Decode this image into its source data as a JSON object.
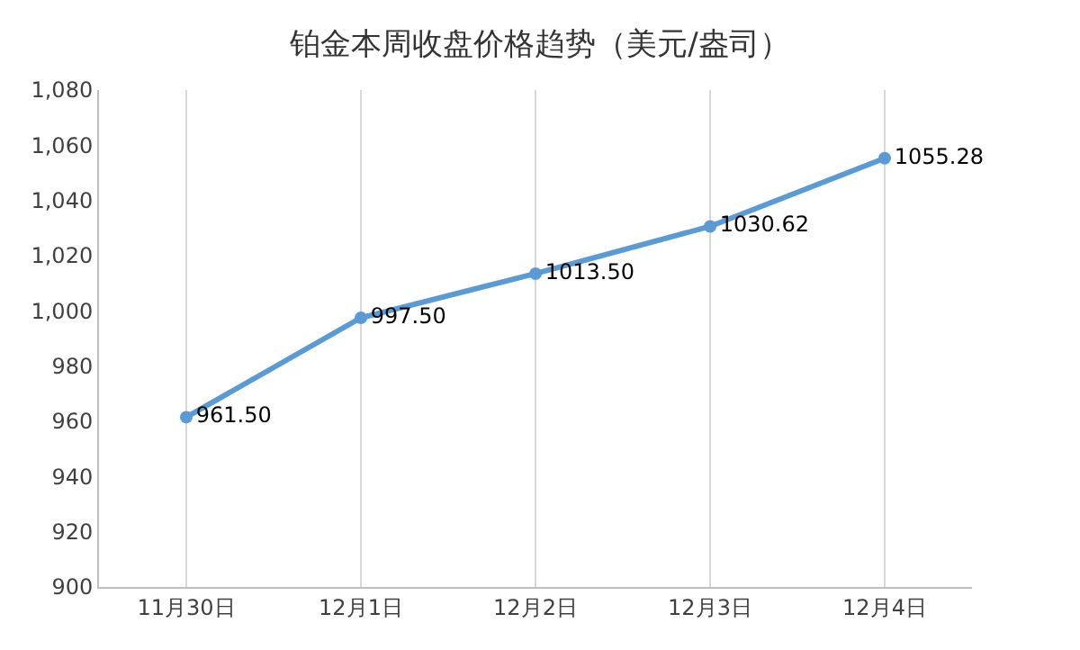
{
  "chart_data": {
    "type": "line",
    "title": "铂金本周收盘价格趋势（美元/盎司）",
    "categories": [
      "11月30日",
      "12月1日",
      "12月2日",
      "12月3日",
      "12月4日"
    ],
    "series": [
      {
        "color": "#5b9bd5",
        "values": [
          961.5,
          997.5,
          1013.5,
          1030.62,
          1055.28
        ]
      }
    ],
    "value_labels": [
      "961.50",
      "997.50",
      "1013.50",
      "1030.62",
      "1055.28"
    ],
    "ylim": [
      900,
      1080
    ],
    "yticks": [
      {
        "value": 900,
        "label": "900"
      },
      {
        "value": 920,
        "label": "920"
      },
      {
        "value": 940,
        "label": "940"
      },
      {
        "value": 960,
        "label": "960"
      },
      {
        "value": 980,
        "label": "980"
      },
      {
        "value": 1000,
        "label": "1,000"
      },
      {
        "value": 1020,
        "label": "1,020"
      },
      {
        "value": 1040,
        "label": "1,040"
      },
      {
        "value": 1060,
        "label": "1,060"
      },
      {
        "value": 1080,
        "label": "1,080"
      }
    ],
    "grid": "x",
    "marker": "circle",
    "line_style": "solid"
  }
}
